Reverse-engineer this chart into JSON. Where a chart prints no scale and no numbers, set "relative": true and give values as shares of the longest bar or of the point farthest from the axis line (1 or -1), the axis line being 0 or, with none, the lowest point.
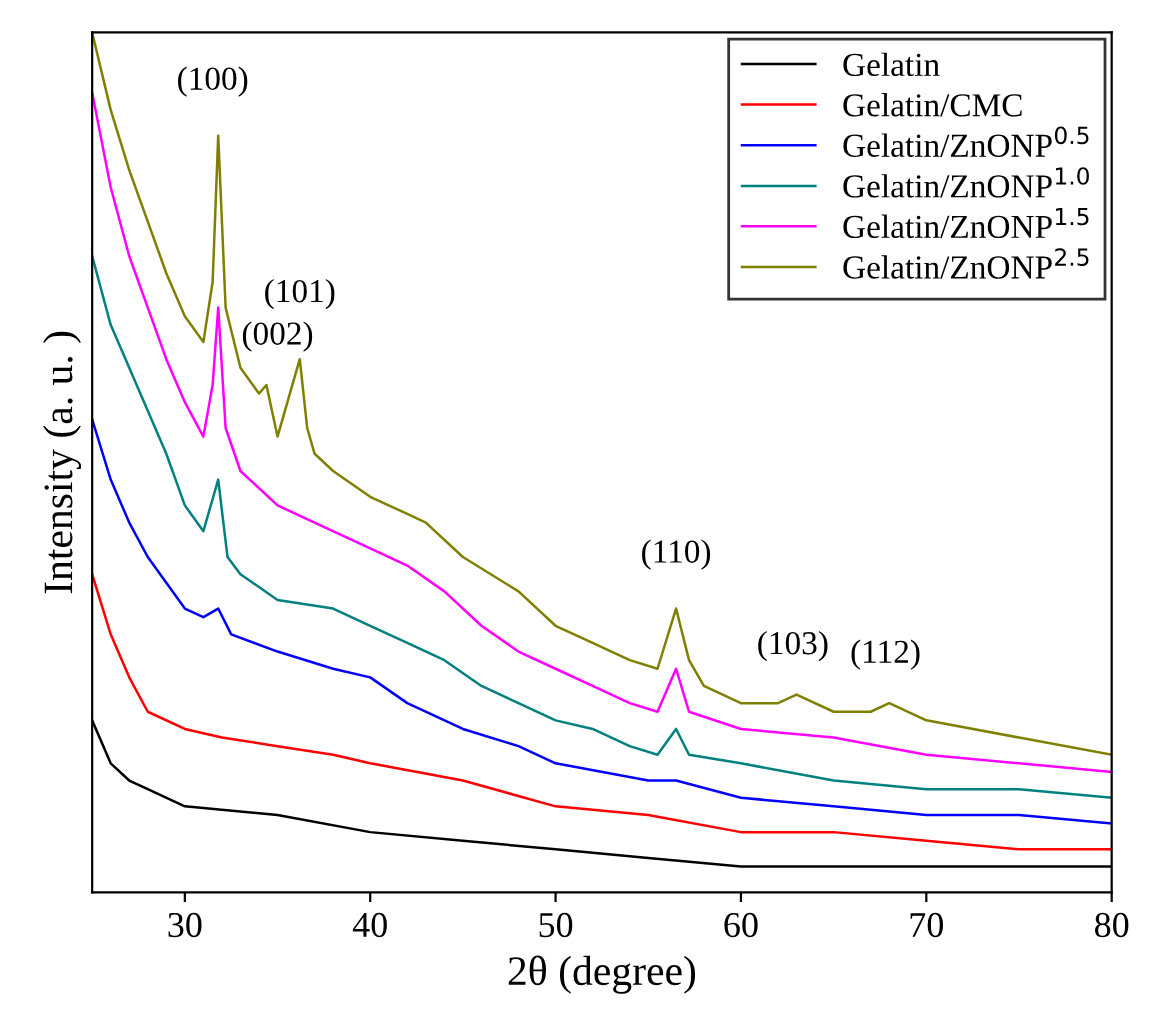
{
  "chart_data": {
    "type": "line",
    "relative": true,
    "xlabel": "2θ (degree)",
    "ylabel": "Intensity (a. u. )",
    "xlim": [
      25,
      80
    ],
    "xticks": [
      30,
      40,
      50,
      60,
      70,
      80
    ],
    "grid": false,
    "legend": "top right",
    "marker": "none",
    "line_style": "solid",
    "series": [
      {
        "name": "Gelatin",
        "color": "#000000",
        "x": [
          25,
          26,
          27,
          28,
          30,
          35,
          40,
          45,
          50,
          55,
          60,
          65,
          70,
          80
        ],
        "values": [
          0.2,
          0.15,
          0.13,
          0.12,
          0.1,
          0.09,
          0.07,
          0.06,
          0.05,
          0.04,
          0.03,
          0.03,
          0.03,
          0.03
        ]
      },
      {
        "name": "Gelatin/CMC",
        "color": "#ff0000",
        "x": [
          25,
          26,
          27,
          28,
          30,
          32,
          35,
          38,
          40,
          45,
          50,
          55,
          60,
          65,
          70,
          75,
          80
        ],
        "values": [
          0.37,
          0.3,
          0.25,
          0.21,
          0.19,
          0.18,
          0.17,
          0.16,
          0.15,
          0.13,
          0.1,
          0.09,
          0.07,
          0.07,
          0.06,
          0.05,
          0.05
        ]
      },
      {
        "name": "Gelatin/ZnONP$^{0.5}$",
        "color": "#0000ff",
        "x": [
          25,
          26,
          27,
          28,
          29,
          30,
          31,
          31.8,
          32.5,
          35,
          38,
          40,
          42,
          45,
          48,
          50,
          55,
          56.5,
          60,
          65,
          70,
          75,
          80
        ],
        "values": [
          0.55,
          0.48,
          0.43,
          0.39,
          0.36,
          0.33,
          0.32,
          0.33,
          0.3,
          0.28,
          0.26,
          0.25,
          0.22,
          0.19,
          0.17,
          0.15,
          0.13,
          0.13,
          0.11,
          0.1,
          0.09,
          0.09,
          0.08
        ]
      },
      {
        "name": "Gelatin/ZnONP$^{1.0}$",
        "color": "#008080",
        "x": [
          25,
          26,
          27,
          28,
          29,
          30,
          31,
          31.8,
          32.3,
          33,
          35,
          38,
          40,
          42,
          44,
          46,
          48,
          50,
          52,
          54,
          55.5,
          56.5,
          57.2,
          60,
          65,
          70,
          75,
          80
        ],
        "values": [
          0.74,
          0.66,
          0.61,
          0.56,
          0.51,
          0.45,
          0.42,
          0.48,
          0.39,
          0.37,
          0.34,
          0.33,
          0.31,
          0.29,
          0.27,
          0.24,
          0.22,
          0.2,
          0.19,
          0.17,
          0.16,
          0.19,
          0.16,
          0.15,
          0.13,
          0.12,
          0.12,
          0.11
        ]
      },
      {
        "name": "Gelatin/ZnONP$^{1.5}$",
        "color": "#ff00ff",
        "x": [
          25,
          26,
          27,
          28,
          29,
          30,
          31,
          31.5,
          31.8,
          32.2,
          33,
          35,
          37,
          40,
          42,
          44,
          46,
          48,
          50,
          52,
          54,
          55.5,
          56.5,
          57.2,
          60,
          65,
          70,
          75,
          80
        ],
        "values": [
          0.93,
          0.82,
          0.74,
          0.68,
          0.62,
          0.57,
          0.53,
          0.59,
          0.68,
          0.54,
          0.49,
          0.45,
          0.43,
          0.4,
          0.38,
          0.35,
          0.31,
          0.28,
          0.26,
          0.24,
          0.22,
          0.21,
          0.26,
          0.21,
          0.19,
          0.18,
          0.16,
          0.15,
          0.14
        ]
      },
      {
        "name": "Gelatin/ZnONP$^{2.5}$",
        "color": "#808000",
        "x": [
          25,
          26,
          27,
          28,
          29,
          30,
          31,
          31.5,
          31.8,
          32.2,
          33,
          34,
          34.4,
          35,
          36.2,
          36.6,
          37,
          38,
          40,
          42,
          43,
          45,
          48,
          50,
          52,
          54,
          55.5,
          56.5,
          57.2,
          58,
          60,
          62,
          63,
          65,
          67,
          68,
          70,
          75,
          80
        ],
        "values": [
          1.0,
          0.91,
          0.84,
          0.78,
          0.72,
          0.67,
          0.64,
          0.71,
          0.88,
          0.68,
          0.61,
          0.58,
          0.59,
          0.53,
          0.62,
          0.54,
          0.51,
          0.49,
          0.46,
          0.44,
          0.43,
          0.39,
          0.35,
          0.31,
          0.29,
          0.27,
          0.26,
          0.33,
          0.27,
          0.24,
          0.22,
          0.22,
          0.23,
          0.21,
          0.21,
          0.22,
          0.2,
          0.18,
          0.16
        ]
      }
    ],
    "annotations": [
      {
        "text": "(100)",
        "x": 31.8,
        "y": 0.88
      },
      {
        "text": "(002)",
        "x": 34.4,
        "y": 0.59
      },
      {
        "text": "(101)",
        "x": 36.2,
        "y": 0.62
      },
      {
        "text": "(110)",
        "x": 56.5,
        "y": 0.33
      },
      {
        "text": "(103)",
        "x": 62.8,
        "y": 0.23
      },
      {
        "text": "(112)",
        "x": 67.8,
        "y": 0.22
      }
    ]
  }
}
